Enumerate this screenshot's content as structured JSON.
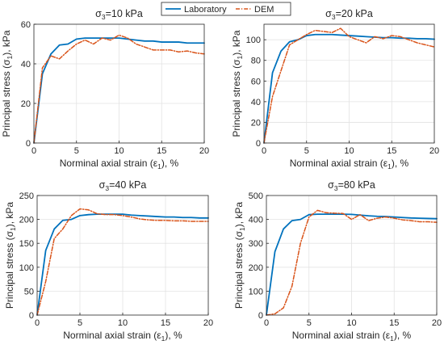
{
  "legend": {
    "entries": [
      {
        "label": "Laboratory",
        "color": "#0072BD",
        "style": "solid"
      },
      {
        "label": "DEM",
        "color": "#D95319",
        "style": "dashdot"
      }
    ]
  },
  "chart_data": [
    {
      "type": "line",
      "title_base": "σ",
      "title_sub": "3",
      "title_rest": "=10 kPa",
      "xlabel": "Norminal axial strain (ε",
      "xlabel_sub": "1",
      "xlabel_end": "), %",
      "ylabel": "Principal stress (σ",
      "ylabel_sub": "1",
      "ylabel_end": "), kPa",
      "xlim": [
        0,
        20
      ],
      "ylim": [
        0,
        60
      ],
      "xticks": [
        0,
        5,
        10,
        15,
        20
      ],
      "yticks": [
        0,
        20,
        40,
        60
      ],
      "grid": true,
      "series": [
        {
          "name": "Laboratory",
          "color": "#0072BD",
          "x": [
            0,
            1,
            2,
            3,
            4,
            5,
            6,
            7,
            8,
            9,
            10,
            11,
            12,
            13,
            14,
            15,
            16,
            17,
            18,
            19,
            20
          ],
          "y": [
            0,
            35,
            45,
            49.5,
            50,
            52.5,
            53,
            53,
            53,
            53,
            53,
            52.5,
            52,
            51.5,
            51.5,
            51,
            51,
            51,
            50.5,
            50.5,
            50.5
          ]
        },
        {
          "name": "DEM",
          "color": "#D95319",
          "x": [
            0,
            1,
            2,
            3,
            4,
            5,
            6,
            7,
            8,
            9,
            10,
            11,
            12,
            13,
            14,
            15,
            16,
            17,
            18,
            19,
            20
          ],
          "y": [
            0,
            38,
            44,
            42.5,
            46.5,
            50,
            52,
            50,
            53,
            52,
            54.5,
            53,
            50,
            48.5,
            47,
            47,
            47,
            46,
            46.5,
            45.5,
            45
          ]
        }
      ]
    },
    {
      "type": "line",
      "title_base": "σ",
      "title_sub": "3",
      "title_rest": "=20 kPa",
      "xlabel": "Norminal axial strain (ε",
      "xlabel_sub": "1",
      "xlabel_end": "), %",
      "ylabel": "Principal stress (σ",
      "ylabel_sub": "1",
      "ylabel_end": "), kPa",
      "xlim": [
        0,
        20
      ],
      "ylim": [
        0,
        115
      ],
      "xticks": [
        0,
        5,
        10,
        15,
        20
      ],
      "yticks": [
        0,
        20,
        40,
        60,
        80,
        100
      ],
      "grid": true,
      "series": [
        {
          "name": "Laboratory",
          "color": "#0072BD",
          "x": [
            0,
            1,
            2,
            3,
            4,
            5,
            6,
            7,
            8,
            9,
            10,
            11,
            12,
            13,
            14,
            15,
            16,
            17,
            18,
            19,
            20
          ],
          "y": [
            0,
            68,
            89,
            98,
            100,
            104,
            105,
            105,
            105,
            104.5,
            104,
            103.5,
            103,
            102.5,
            102,
            102,
            101.5,
            101.5,
            101,
            101,
            100.5
          ]
        },
        {
          "name": "DEM",
          "color": "#D95319",
          "x": [
            0,
            1,
            2,
            3,
            4,
            5,
            6,
            7,
            8,
            9,
            10,
            11,
            12,
            13,
            14,
            15,
            16,
            17,
            18,
            19,
            20
          ],
          "y": [
            0,
            45,
            70,
            95,
            100,
            105,
            109,
            108,
            107,
            111,
            103,
            100,
            97,
            103,
            101,
            104,
            103,
            100,
            97,
            95,
            93
          ]
        }
      ]
    },
    {
      "type": "line",
      "title_base": "σ",
      "title_sub": "3",
      "title_rest": "=40 kPa",
      "xlabel": "Norminal axial strain (ε",
      "xlabel_sub": "1",
      "xlabel_end": "), %",
      "ylabel": "Principal stress (σ",
      "ylabel_sub": "1",
      "ylabel_end": "), kPa",
      "xlim": [
        0,
        20
      ],
      "ylim": [
        0,
        250
      ],
      "xticks": [
        0,
        5,
        10,
        15,
        20
      ],
      "yticks": [
        0,
        50,
        100,
        150,
        200,
        250
      ],
      "grid": true,
      "series": [
        {
          "name": "Laboratory",
          "color": "#0072BD",
          "x": [
            0,
            1,
            2,
            3,
            4,
            5,
            6,
            7,
            8,
            9,
            10,
            11,
            12,
            13,
            14,
            15,
            16,
            17,
            18,
            19,
            20
          ],
          "y": [
            0,
            135,
            180,
            198,
            200,
            208,
            210,
            211,
            211,
            211,
            211,
            209,
            208,
            207,
            206,
            205,
            205,
            204,
            204,
            203,
            203
          ]
        },
        {
          "name": "DEM",
          "color": "#D95319",
          "x": [
            0,
            1,
            2,
            3,
            4,
            5,
            6,
            7,
            8,
            9,
            10,
            11,
            12,
            13,
            14,
            15,
            16,
            17,
            18,
            19,
            20
          ],
          "y": [
            0,
            70,
            160,
            180,
            208,
            222,
            220,
            212,
            210,
            210,
            208,
            205,
            201,
            199,
            198,
            198,
            197,
            197,
            196,
            196,
            196
          ]
        }
      ]
    },
    {
      "type": "line",
      "title_base": "σ",
      "title_sub": "3",
      "title_rest": "=80 kPa",
      "xlabel": "Norminal axial strain (ε",
      "xlabel_sub": "1",
      "xlabel_end": "), %",
      "ylabel": "Principal stress (σ",
      "ylabel_sub": "1",
      "ylabel_end": "), kPa",
      "xlim": [
        0,
        20
      ],
      "ylim": [
        0,
        500
      ],
      "xticks": [
        0,
        5,
        10,
        15,
        20
      ],
      "yticks": [
        0,
        100,
        200,
        300,
        400,
        500
      ],
      "grid": true,
      "series": [
        {
          "name": "Laboratory",
          "color": "#0072BD",
          "x": [
            0,
            1,
            2,
            3,
            4,
            5,
            6,
            7,
            8,
            9,
            10,
            11,
            12,
            13,
            14,
            15,
            16,
            17,
            18,
            19,
            20
          ],
          "y": [
            0,
            265,
            360,
            395,
            400,
            420,
            422,
            422,
            422,
            422,
            421,
            418,
            415,
            413,
            412,
            410,
            408,
            406,
            405,
            404,
            403
          ]
        },
        {
          "name": "DEM",
          "color": "#D95319",
          "x": [
            0,
            1,
            2,
            3,
            4,
            5,
            6,
            7,
            8,
            9,
            10,
            11,
            12,
            13,
            14,
            15,
            16,
            17,
            18,
            19,
            20
          ],
          "y": [
            0,
            5,
            30,
            120,
            300,
            410,
            438,
            428,
            426,
            425,
            400,
            420,
            395,
            405,
            410,
            405,
            398,
            395,
            390,
            390,
            388
          ]
        }
      ]
    }
  ]
}
